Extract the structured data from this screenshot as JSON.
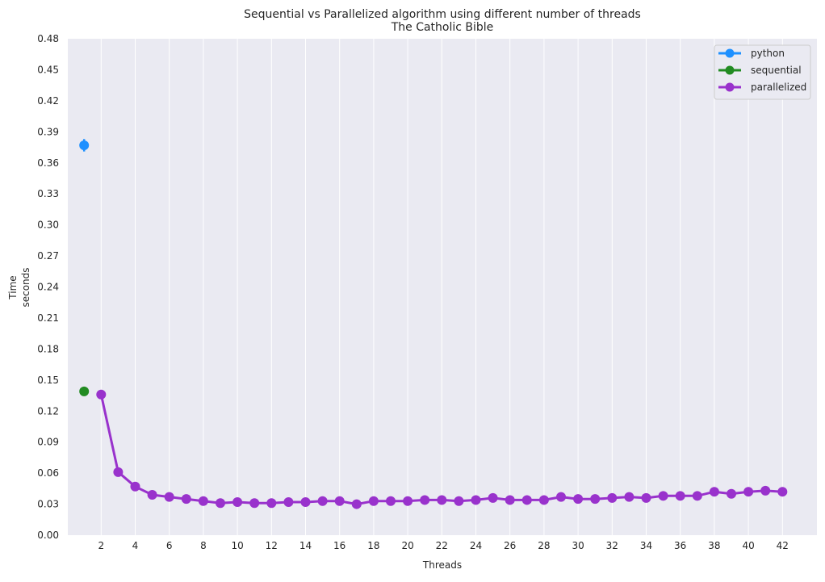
{
  "chart_data": {
    "type": "line",
    "title": "Sequential vs Parallelized algorithm using different number of threads",
    "subtitle": "The Catholic Bible",
    "xlabel": "Threads",
    "ylabel_lines": [
      "Time",
      "seconds"
    ],
    "x_ticks": [
      "2",
      "4",
      "6",
      "8",
      "10",
      "12",
      "14",
      "16",
      "18",
      "20",
      "22",
      "24",
      "26",
      "28",
      "30",
      "32",
      "34",
      "36",
      "38",
      "40",
      "42"
    ],
    "y_ticks": [
      "0.00",
      "0.03",
      "0.06",
      "0.09",
      "0.12",
      "0.15",
      "0.18",
      "0.21",
      "0.24",
      "0.27",
      "0.30",
      "0.33",
      "0.36",
      "0.39",
      "0.42",
      "0.45",
      "0.48"
    ],
    "xlim": [
      0,
      43
    ],
    "ylim": [
      0,
      0.48
    ],
    "grid": true,
    "legend_position": "top-right",
    "series": [
      {
        "name": "python",
        "color": "#1E90FF",
        "x": [
          1
        ],
        "y": [
          0.377
        ],
        "error": [
          0.006
        ]
      },
      {
        "name": "sequential",
        "color": "#228B22",
        "x": [
          1
        ],
        "y": [
          0.139
        ]
      },
      {
        "name": "parallelized",
        "color": "#9932CC",
        "x": [
          2,
          3,
          4,
          5,
          6,
          7,
          8,
          9,
          10,
          11,
          12,
          13,
          14,
          15,
          16,
          17,
          18,
          19,
          20,
          21,
          22,
          23,
          24,
          25,
          26,
          27,
          28,
          29,
          30,
          31,
          32,
          33,
          34,
          35,
          36,
          37,
          38,
          39,
          40,
          41,
          42
        ],
        "y": [
          0.136,
          0.061,
          0.047,
          0.039,
          0.037,
          0.035,
          0.033,
          0.031,
          0.032,
          0.031,
          0.031,
          0.032,
          0.032,
          0.033,
          0.033,
          0.03,
          0.033,
          0.033,
          0.033,
          0.034,
          0.034,
          0.033,
          0.034,
          0.036,
          0.034,
          0.034,
          0.034,
          0.037,
          0.035,
          0.035,
          0.036,
          0.037,
          0.036,
          0.038,
          0.038,
          0.038,
          0.042,
          0.04,
          0.042,
          0.043,
          0.042
        ]
      }
    ]
  }
}
